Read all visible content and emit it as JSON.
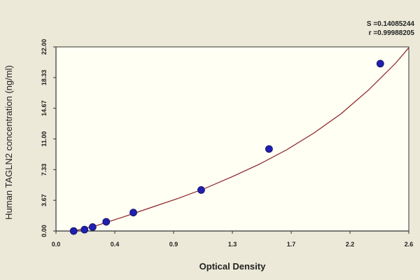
{
  "chart_data": {
    "type": "scatter",
    "title": "",
    "xlabel": "Optical Density",
    "ylabel": "Human TAGLN2 concentration (ng/ml)",
    "xlim": [
      0.0,
      2.6
    ],
    "ylim": [
      0.0,
      22.0
    ],
    "x_tick_labels": [
      "0.0",
      "0.4",
      "0.9",
      "1.3",
      "1.7",
      "2.2",
      "2.6"
    ],
    "y_tick_labels": [
      "0.00",
      "3.67",
      "7.33",
      "11.00",
      "14.67",
      "18.33",
      "22.00"
    ],
    "grid": false,
    "points": {
      "x": [
        0.13,
        0.21,
        0.27,
        0.37,
        0.57,
        1.07,
        1.57,
        2.39
      ],
      "y": [
        0.0,
        0.16,
        0.47,
        1.1,
        2.2,
        4.9,
        9.8,
        20.0
      ]
    },
    "fit_curve": {
      "x": [
        0.13,
        0.3,
        0.5,
        0.7,
        0.9,
        1.1,
        1.3,
        1.5,
        1.7,
        1.9,
        2.1,
        2.3,
        2.5,
        2.6
      ],
      "y": [
        0.0,
        0.65,
        1.7,
        2.8,
        3.9,
        5.1,
        6.5,
        8.0,
        9.7,
        11.7,
        14.0,
        16.8,
        20.0,
        21.9
      ]
    },
    "stats": {
      "s_text": "S =0.14085244",
      "r_text": "r =0.99988205"
    },
    "colors": {
      "background": "#ece9d8",
      "plot_area": "#fffff4",
      "curve": "#8b2020",
      "marker": "#2020b0",
      "axis": "#333333"
    }
  }
}
